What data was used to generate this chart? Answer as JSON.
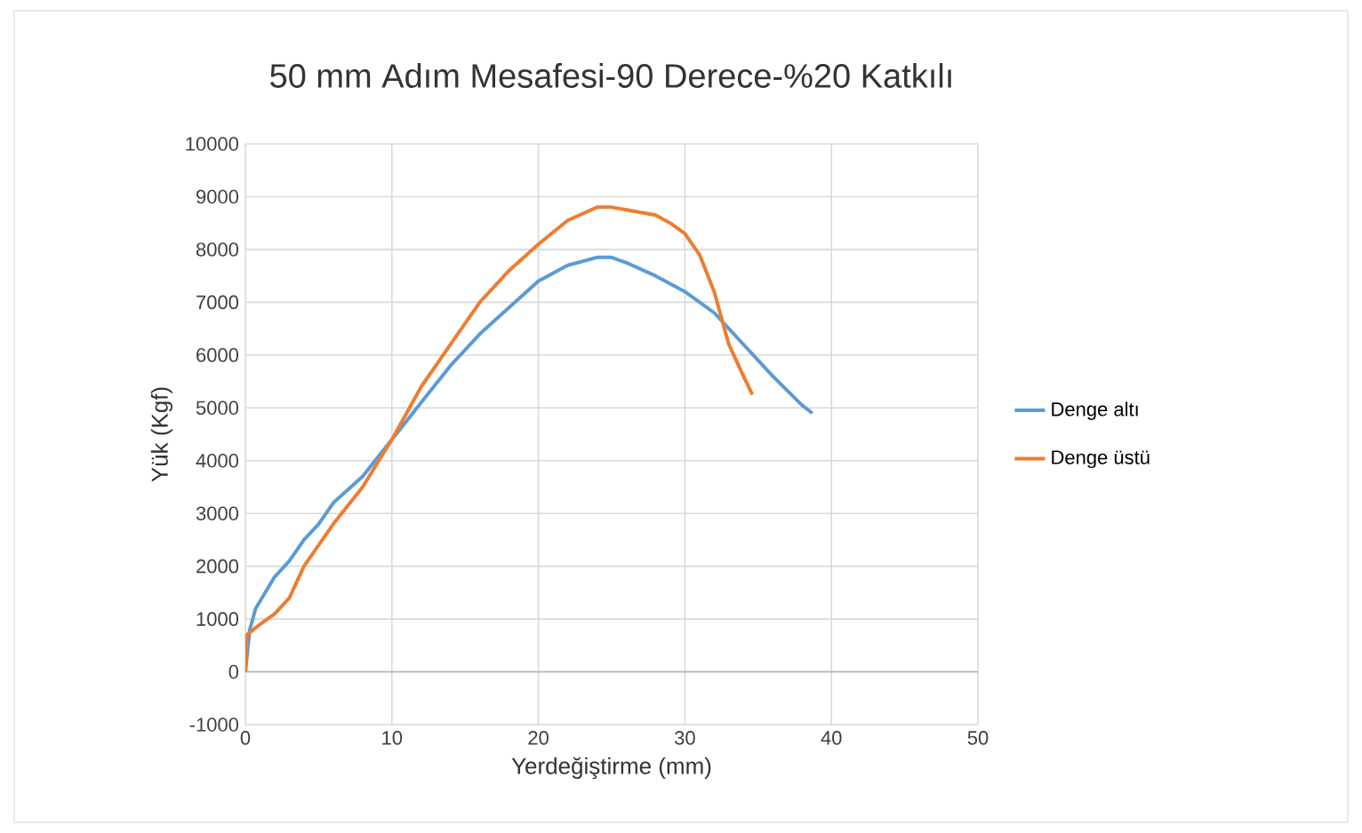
{
  "chart_data": {
    "type": "line",
    "title": "50 mm Adım Mesafesi-90 Derece-%20 Katkılı",
    "xlabel": "Yerdeğiştirme (mm)",
    "ylabel": "Yük (Kgf)",
    "xlim": [
      0,
      50
    ],
    "xticks": [
      0,
      10,
      20,
      30,
      40,
      50
    ],
    "ylim": [
      -1000,
      10000
    ],
    "yticks": [
      -1000,
      0,
      1000,
      2000,
      3000,
      4000,
      5000,
      6000,
      7000,
      8000,
      9000,
      10000
    ],
    "grid": true,
    "legend": "right",
    "marker": "none",
    "line_style": "solid",
    "series": [
      {
        "name": "Denge altı",
        "color": "#5b9bd5",
        "x": [
          0,
          0.3,
          0.7,
          2,
          3,
          4,
          5,
          6,
          8,
          10,
          12,
          14,
          16,
          18,
          20,
          22,
          24,
          25,
          26,
          28,
          30,
          32,
          34,
          36,
          38,
          38.7
        ],
        "values": [
          0,
          800,
          1200,
          1800,
          2100,
          2500,
          2800,
          3200,
          3700,
          4400,
          5100,
          5800,
          6400,
          6900,
          7400,
          7700,
          7850,
          7850,
          7750,
          7500,
          7200,
          6800,
          6200,
          5600,
          5050,
          4900
        ]
      },
      {
        "name": "Denge üstü",
        "color": "#ed7d31",
        "x": [
          0,
          0.1,
          1,
          2,
          3,
          4,
          5,
          6,
          8,
          10,
          12,
          14,
          16,
          18,
          20,
          22,
          24,
          25,
          26,
          28,
          29,
          30,
          31,
          32,
          33,
          34,
          34.6
        ],
        "values": [
          0,
          700,
          900,
          1100,
          1400,
          2000,
          2400,
          2800,
          3500,
          4400,
          5400,
          6200,
          7000,
          7600,
          8100,
          8550,
          8800,
          8800,
          8750,
          8650,
          8500,
          8300,
          7900,
          7200,
          6200,
          5600,
          5250
        ]
      }
    ]
  }
}
